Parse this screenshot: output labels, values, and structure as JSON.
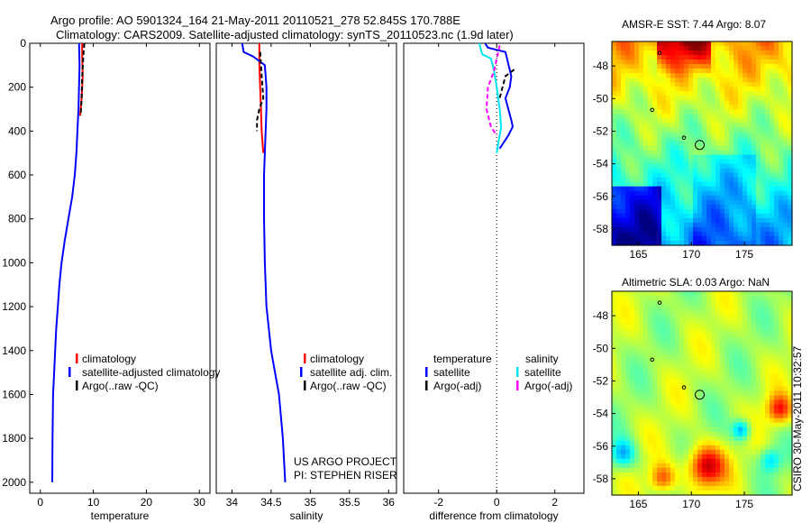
{
  "header": {
    "line1": "Argo profile: AO 5901324_164 21-May-2011 20110521_278 52.845S 170.788E",
    "line2": "Climatology: CARS2009. Satellite-adjusted climatology: synTS_20110523.nc (1.9d later)"
  },
  "colors": {
    "climatology": "#ff0000",
    "satellite": "#0000ff",
    "argo": "#000000",
    "salinity_satellite": "#00e5ee",
    "salinity_argo": "#ff00ff"
  },
  "chart_data": [
    {
      "id": "temperature",
      "type": "line",
      "xlabel": "temperature",
      "ylabel": "",
      "xlim": [
        -2,
        32
      ],
      "ylim": [
        2050,
        0
      ],
      "xticks": [
        0,
        10,
        20,
        30
      ],
      "yticks": [
        0,
        200,
        400,
        600,
        800,
        1000,
        1200,
        1400,
        1600,
        1800,
        2000
      ],
      "series": [
        {
          "name": "climatology",
          "style": "solid",
          "color": "#ff0000",
          "x": [
            7.9,
            7.9,
            8.0,
            7.8,
            7.5
          ],
          "y": [
            0,
            50,
            150,
            250,
            330
          ]
        },
        {
          "name": "satellite-adjusted climatology",
          "style": "solid",
          "color": "#0000ff",
          "x": [
            7.3,
            7.4,
            7.3,
            7.2,
            7.0,
            6.8,
            6.5,
            6.0,
            5.3,
            4.6,
            4.0,
            3.6,
            3.3,
            3.0,
            2.8,
            2.6,
            2.4,
            2.3,
            2.25
          ],
          "y": [
            0,
            100,
            200,
            300,
            400,
            500,
            600,
            700,
            800,
            900,
            1000,
            1100,
            1200,
            1300,
            1400,
            1500,
            1600,
            1800,
            2000
          ]
        },
        {
          "name": "Argo(..raw -QC)",
          "style": "dashed",
          "color": "#000000",
          "x": [
            8.3,
            8.1,
            7.9,
            7.8,
            7.6
          ],
          "y": [
            0,
            60,
            150,
            250,
            330
          ]
        }
      ],
      "legend": [
        "climatology",
        "satellite-adjusted climatology",
        "Argo(..raw -QC)"
      ]
    },
    {
      "id": "salinity",
      "type": "line",
      "xlabel": "salinity",
      "ylabel": "",
      "xlim": [
        33.8,
        36.1
      ],
      "ylim": [
        2050,
        0
      ],
      "xticks": [
        34,
        34.5,
        35,
        35.5,
        36
      ],
      "yticks": [],
      "series": [
        {
          "name": "climatology",
          "style": "solid",
          "color": "#ff0000",
          "x": [
            34.35,
            34.35,
            34.36,
            34.37,
            34.38,
            34.4
          ],
          "y": [
            0,
            100,
            200,
            300,
            400,
            500
          ]
        },
        {
          "name": "satellite adj. clim.",
          "style": "solid",
          "color": "#0000ff",
          "x": [
            34.13,
            34.15,
            34.27,
            34.42,
            34.44,
            34.44,
            34.43,
            34.42,
            34.41,
            34.41,
            34.42,
            34.44,
            34.47,
            34.5,
            34.55,
            34.6,
            34.65,
            34.68
          ],
          "y": [
            0,
            40,
            60,
            100,
            200,
            300,
            400,
            500,
            600,
            800,
            1000,
            1200,
            1300,
            1400,
            1500,
            1600,
            1800,
            2000
          ]
        },
        {
          "name": "Argo(..raw -QC)",
          "style": "dashed",
          "color": "#000000",
          "x": [
            34.36,
            34.38,
            34.4,
            34.35,
            34.32,
            34.32
          ],
          "y": [
            40,
            150,
            250,
            300,
            350,
            400
          ]
        }
      ],
      "legend": [
        "climatology",
        "satellite adj. clim.",
        "Argo(..raw -QC)"
      ]
    },
    {
      "id": "difference",
      "type": "line",
      "xlabel": "difference from climatology",
      "ylabel": "",
      "xlim": [
        -3.2,
        3.0
      ],
      "ylim": [
        2050,
        0
      ],
      "xticks": [
        -2,
        0,
        2
      ],
      "yticks": [],
      "series": [
        {
          "name": "temperature satellite",
          "style": "solid",
          "color": "#0000ff",
          "x": [
            -0.4,
            -0.3,
            0.3,
            0.5,
            0.45,
            0.3,
            0.4,
            0.5,
            0.55,
            0.4,
            0.2,
            0.1
          ],
          "y": [
            0,
            20,
            40,
            150,
            200,
            250,
            300,
            350,
            380,
            420,
            460,
            480
          ]
        },
        {
          "name": "temperature Argo(-adj)",
          "style": "dashed",
          "color": "#000000",
          "x": [
            0.6,
            0.3,
            0.2,
            0.1
          ],
          "y": [
            120,
            150,
            200,
            250
          ]
        },
        {
          "name": "salinity satellite",
          "style": "solid",
          "color": "#00e5ee",
          "x": [
            -0.6,
            -0.5,
            -0.2,
            -0.1,
            0.0,
            0.1,
            0.15,
            0.1,
            0.05,
            0.0
          ],
          "y": [
            0,
            50,
            70,
            120,
            200,
            300,
            380,
            420,
            460,
            500
          ]
        },
        {
          "name": "salinity Argo(-adj)",
          "style": "dashed",
          "color": "#ff00ff",
          "x": [
            0.1,
            -0.1,
            -0.3,
            -0.35,
            -0.2,
            0.0
          ],
          "y": [
            10,
            130,
            200,
            300,
            380,
            420
          ]
        }
      ],
      "legend_headers": [
        "temperature",
        "salinity"
      ],
      "legend_temperature": [
        "satellite",
        "Argo(-adj)"
      ],
      "legend_salinity": [
        "satellite",
        "Argo(-adj)"
      ]
    },
    {
      "id": "sst-map",
      "type": "heatmap",
      "title": "AMSR-E SST: 7.44 Argo: 8.07",
      "xlim": [
        162.5,
        179.5
      ],
      "ylim": [
        -59,
        -46.5
      ],
      "xticks": [
        165,
        170,
        175
      ],
      "yticks": [
        -48,
        -50,
        -52,
        -54,
        -56,
        -58
      ],
      "marker": {
        "lon": 170.788,
        "lat": -52.845
      }
    },
    {
      "id": "sla-map",
      "type": "heatmap",
      "title": "Altimetric SLA: 0.03 Argo: NaN",
      "xlim": [
        162.5,
        179.5
      ],
      "ylim": [
        -59,
        -46.5
      ],
      "xticks": [
        165,
        170,
        175
      ],
      "yticks": [
        -48,
        -50,
        -52,
        -54,
        -56,
        -58
      ],
      "marker": {
        "lon": 170.788,
        "lat": -52.845
      }
    }
  ],
  "notes": {
    "project": "US ARGO PROJECT",
    "pi": "PI: STEPHEN RISER",
    "stamp": "CSIRO 30-May-2011 10:32:57"
  }
}
